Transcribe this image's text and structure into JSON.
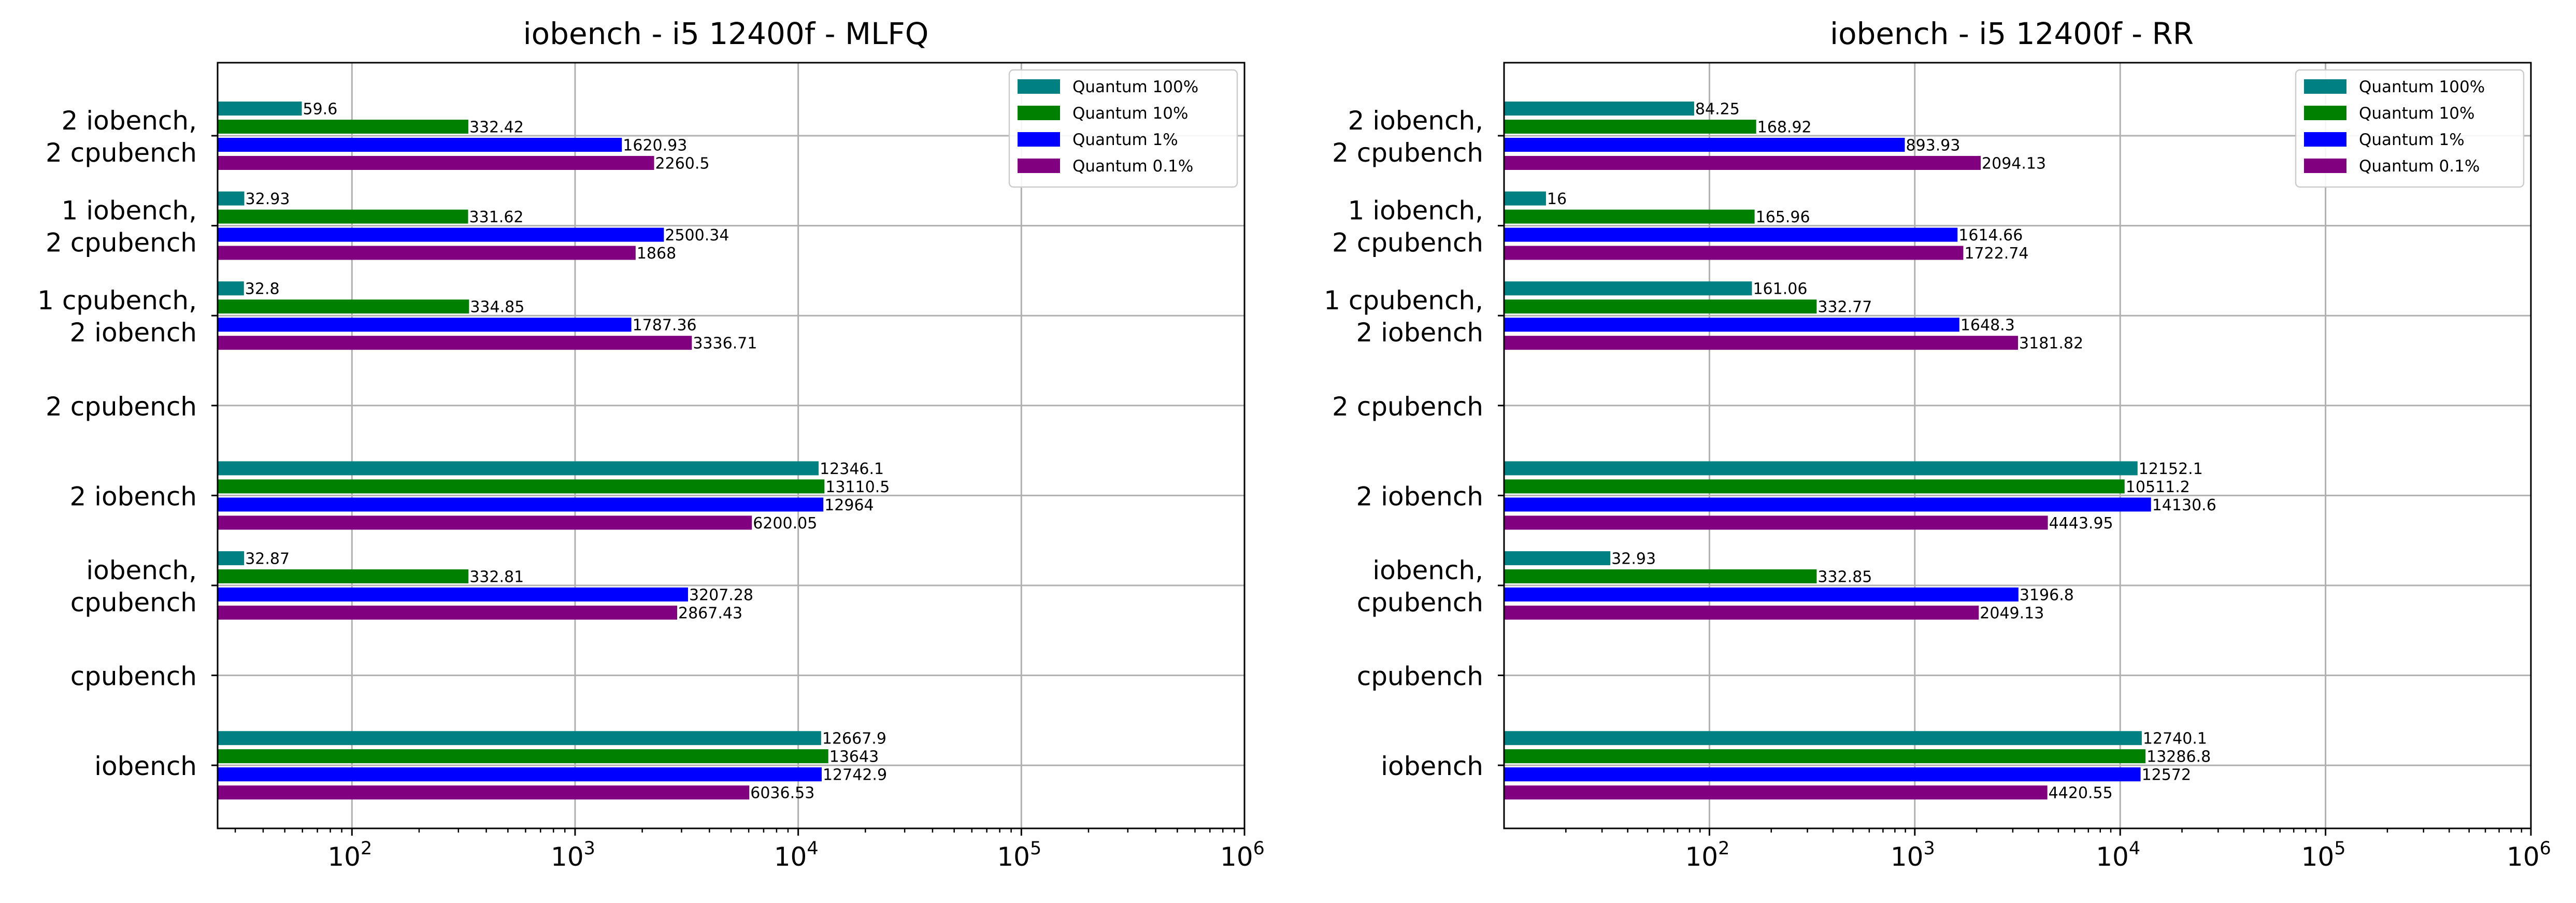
{
  "legend_title": "",
  "chart_data": [
    {
      "type": "bar",
      "orientation": "horizontal",
      "title": "iobench - i5 12400f - MLFQ",
      "xlabel": "",
      "ylabel": "",
      "xscale": "log",
      "xlim": [
        25,
        1000000
      ],
      "xticks": [
        {
          "value": 100,
          "label": "10",
          "exp": "2"
        },
        {
          "value": 1000,
          "label": "10",
          "exp": "3"
        },
        {
          "value": 10000,
          "label": "10",
          "exp": "4"
        },
        {
          "value": 100000,
          "label": "10",
          "exp": "5"
        },
        {
          "value": 1000000,
          "label": "10",
          "exp": "6"
        }
      ],
      "grid": true,
      "legend_position": "top-right",
      "categories": [
        {
          "lines": [
            "2 iobench,",
            "2 cpubench"
          ]
        },
        {
          "lines": [
            "1 iobench,",
            "2 cpubench"
          ]
        },
        {
          "lines": [
            "1 cpubench,",
            "2 iobench"
          ]
        },
        {
          "lines": [
            "2 cpubench"
          ]
        },
        {
          "lines": [
            "2 iobench"
          ]
        },
        {
          "lines": [
            "iobench,",
            "cpubench"
          ]
        },
        {
          "lines": [
            "cpubench"
          ]
        },
        {
          "lines": [
            "iobench"
          ]
        }
      ],
      "series": [
        {
          "name": "Quantum 100%",
          "color": "#008080",
          "values": [
            59.6,
            32.93,
            32.8,
            null,
            12346.1,
            32.87,
            null,
            12667.9
          ],
          "labels": [
            "59.6",
            "32.93",
            "32.8",
            "",
            "12346.1",
            "32.87",
            "",
            "12667.9"
          ]
        },
        {
          "name": "Quantum 10%",
          "color": "#008000",
          "values": [
            332.42,
            331.62,
            334.85,
            null,
            13110.5,
            332.81,
            null,
            13643
          ],
          "labels": [
            "332.42",
            "331.62",
            "334.85",
            "",
            "13110.5",
            "332.81",
            "",
            "13643"
          ]
        },
        {
          "name": "Quantum 1%",
          "color": "#0000ff",
          "values": [
            1620.93,
            2500.34,
            1787.36,
            null,
            12964,
            3207.28,
            null,
            12742.9
          ],
          "labels": [
            "1620.93",
            "2500.34",
            "1787.36",
            "",
            "12964",
            "3207.28",
            "",
            "12742.9"
          ]
        },
        {
          "name": "Quantum 0.1%",
          "color": "#800080",
          "values": [
            2260.5,
            1868,
            3336.71,
            null,
            6200.05,
            2867.43,
            null,
            6036.53
          ],
          "labels": [
            "2260.5",
            "1868",
            "3336.71",
            "",
            "6200.05",
            "2867.43",
            "",
            "6036.53"
          ]
        }
      ]
    },
    {
      "type": "bar",
      "orientation": "horizontal",
      "title": "iobench - i5 12400f - RR",
      "xlabel": "",
      "ylabel": "",
      "xscale": "log",
      "xlim": [
        10,
        1000000
      ],
      "xticks": [
        {
          "value": 100,
          "label": "10",
          "exp": "2"
        },
        {
          "value": 1000,
          "label": "10",
          "exp": "3"
        },
        {
          "value": 10000,
          "label": "10",
          "exp": "4"
        },
        {
          "value": 100000,
          "label": "10",
          "exp": "5"
        },
        {
          "value": 1000000,
          "label": "10",
          "exp": "6"
        }
      ],
      "grid": true,
      "legend_position": "top-right",
      "categories": [
        {
          "lines": [
            "2 iobench,",
            "2 cpubench"
          ]
        },
        {
          "lines": [
            "1 iobench,",
            "2 cpubench"
          ]
        },
        {
          "lines": [
            "1 cpubench,",
            "2 iobench"
          ]
        },
        {
          "lines": [
            "2 cpubench"
          ]
        },
        {
          "lines": [
            "2 iobench"
          ]
        },
        {
          "lines": [
            "iobench,",
            "cpubench"
          ]
        },
        {
          "lines": [
            "cpubench"
          ]
        },
        {
          "lines": [
            "iobench"
          ]
        }
      ],
      "series": [
        {
          "name": "Quantum 100%",
          "color": "#008080",
          "values": [
            84.25,
            16,
            161.06,
            null,
            12152.1,
            32.93,
            null,
            12740.1
          ],
          "labels": [
            "84.25",
            "16",
            "161.06",
            "",
            "12152.1",
            "32.93",
            "",
            "12740.1"
          ]
        },
        {
          "name": "Quantum 10%",
          "color": "#008000",
          "values": [
            168.92,
            165.96,
            332.77,
            null,
            10511.2,
            332.85,
            null,
            13286.8
          ],
          "labels": [
            "168.92",
            "165.96",
            "332.77",
            "",
            "10511.2",
            "332.85",
            "",
            "13286.8"
          ]
        },
        {
          "name": "Quantum 1%",
          "color": "#0000ff",
          "values": [
            893.93,
            1614.66,
            1648.3,
            null,
            14130.6,
            3196.8,
            null,
            12572
          ],
          "labels": [
            "893.93",
            "1614.66",
            "1648.3",
            "",
            "14130.6",
            "3196.8",
            "",
            "12572"
          ]
        },
        {
          "name": "Quantum 0.1%",
          "color": "#800080",
          "values": [
            2094.13,
            1722.74,
            3181.82,
            null,
            4443.95,
            2049.13,
            null,
            4420.55
          ],
          "labels": [
            "2094.13",
            "1722.74",
            "3181.82",
            "",
            "4443.95",
            "2049.13",
            "",
            "4420.55"
          ]
        }
      ]
    }
  ]
}
